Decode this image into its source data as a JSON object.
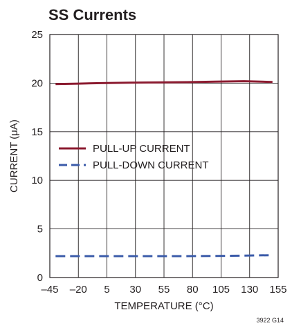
{
  "chart_data": {
    "type": "line",
    "title": "SS Currents",
    "xlabel": "TEMPERATURE (°C)",
    "ylabel": "CURRENT (μA)",
    "xlim": [
      -45,
      155
    ],
    "ylim": [
      0,
      25
    ],
    "x_ticks": [
      -45,
      -20,
      5,
      30,
      55,
      80,
      105,
      130,
      155
    ],
    "x_tick_labels": [
      "–45",
      "–20",
      "5",
      "30",
      "55",
      "80",
      "105",
      "130",
      "155"
    ],
    "y_ticks": [
      0,
      5,
      10,
      15,
      20,
      25
    ],
    "y_tick_labels": [
      "0",
      "5",
      "10",
      "15",
      "20",
      "25"
    ],
    "grid": true,
    "legend_position": "center-left",
    "series": [
      {
        "name": "PULL-UP CURRENT",
        "color": "#8b1a2f",
        "style": "solid",
        "x": [
          -40,
          -20,
          0,
          25,
          50,
          75,
          100,
          125,
          150
        ],
        "y": [
          19.9,
          19.95,
          20.0,
          20.05,
          20.07,
          20.1,
          20.15,
          20.2,
          20.12
        ]
      },
      {
        "name": "PULL-DOWN CURRENT",
        "color": "#3b5ba9",
        "style": "dashed",
        "x": [
          -40,
          -20,
          0,
          25,
          50,
          75,
          100,
          125,
          150
        ],
        "y": [
          2.2,
          2.2,
          2.2,
          2.2,
          2.2,
          2.2,
          2.22,
          2.25,
          2.3
        ]
      }
    ]
  },
  "figure_id": "3922 G14"
}
